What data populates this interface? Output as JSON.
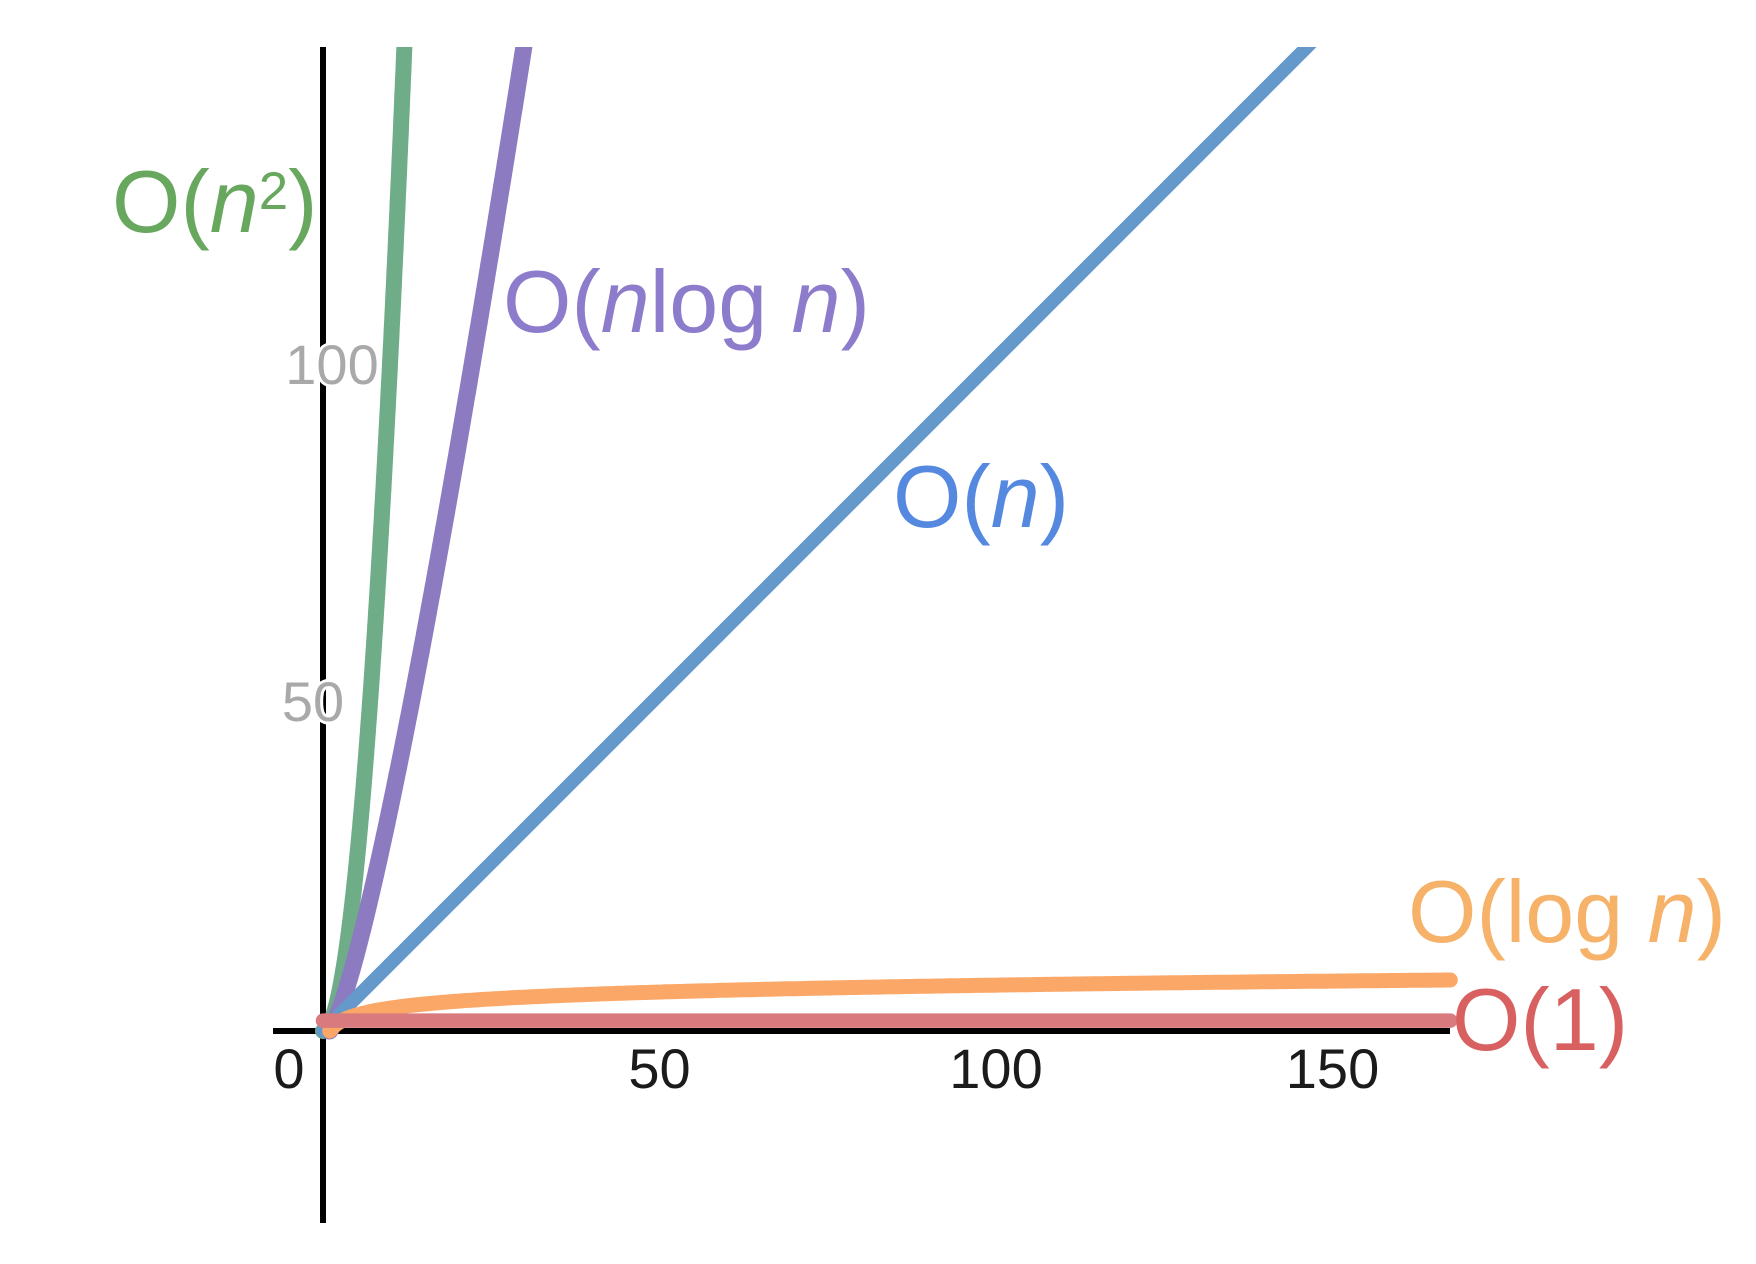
{
  "chart_data": {
    "type": "line",
    "title": "",
    "xlabel": "",
    "ylabel": "",
    "grid": false,
    "legend": "inline-curve-labels",
    "background": "#ffffff",
    "axis_color": "#000000",
    "x_axis": {
      "tick_labels": [
        "0",
        "50",
        "100",
        "150"
      ],
      "tick_values": [
        0,
        50,
        100,
        150
      ],
      "tick_color": "#1b1b1b",
      "range": [
        -7.5,
        167.5
      ]
    },
    "y_axis": {
      "tick_labels": [
        "50",
        "100"
      ],
      "tick_values": [
        50,
        100
      ],
      "tick_color": "#a9a9a9",
      "range": [
        -28.5,
        146.5
      ]
    },
    "series": [
      {
        "name": "O(n²)",
        "fn": "quadratic",
        "coef": 1,
        "domain": [
          0,
          13.1
        ],
        "color": "#6FAC88",
        "label_color": "#67A75E",
        "label_parts": [
          {
            "text": "O(",
            "style": "n"
          },
          {
            "text": "n",
            "style": "i"
          },
          {
            "text": "2",
            "style": "sup"
          },
          {
            "text": ")",
            "style": "n"
          }
        ],
        "points": [
          [
            0,
            0
          ],
          [
            2,
            4
          ],
          [
            4,
            16
          ],
          [
            6,
            36
          ],
          [
            8,
            64
          ],
          [
            10,
            100
          ],
          [
            12,
            144
          ]
        ]
      },
      {
        "name": "O(n log n)",
        "fn": "nlogn",
        "coef": 1,
        "domain": [
          0.9,
          30
        ],
        "color": "#8D7BC1",
        "label_color": "#8D7BCB",
        "label_parts": [
          {
            "text": "O(",
            "style": "n"
          },
          {
            "text": "n",
            "style": "i"
          },
          {
            "text": "log ",
            "style": "n"
          },
          {
            "text": "n",
            "style": "i"
          },
          {
            "text": ")",
            "style": "n"
          }
        ],
        "points": [
          [
            1,
            0
          ],
          [
            5,
            11.6
          ],
          [
            10,
            33.2
          ],
          [
            15,
            58.6
          ],
          [
            20,
            86.4
          ],
          [
            25,
            116.1
          ],
          [
            29.5,
            143.9
          ]
        ]
      },
      {
        "name": "O(n)",
        "fn": "linear",
        "coef": 1,
        "domain": [
          0,
          147
        ],
        "color": "#6598CB",
        "label_color": "#5589E0",
        "label_parts": [
          {
            "text": "O(",
            "style": "n"
          },
          {
            "text": "n",
            "style": "i"
          },
          {
            "text": ")",
            "style": "n"
          }
        ],
        "points": [
          [
            0,
            0
          ],
          [
            50,
            50
          ],
          [
            100,
            100
          ],
          [
            146,
            146
          ]
        ]
      },
      {
        "name": "O(log n)",
        "fn": "log",
        "coef": 1.48,
        "domain": [
          1,
          167.5
        ],
        "color": "#FBA767",
        "label_color": "#F7B269",
        "label_parts": [
          {
            "text": "O(log ",
            "style": "n"
          },
          {
            "text": "n",
            "style": "i"
          },
          {
            "text": ")",
            "style": "n"
          }
        ],
        "points": [
          [
            1,
            0
          ],
          [
            10,
            3.4
          ],
          [
            50,
            5.8
          ],
          [
            100,
            6.8
          ],
          [
            167,
            7.6
          ]
        ]
      },
      {
        "name": "O(1)",
        "fn": "const",
        "coef": 1.55,
        "domain": [
          0,
          167.5
        ],
        "color": "#D87A7E",
        "label_color": "#D96060",
        "label_parts": [
          {
            "text": "O(1)",
            "style": "n"
          }
        ],
        "points": [
          [
            0,
            1.55
          ],
          [
            167,
            1.55
          ]
        ]
      }
    ]
  }
}
